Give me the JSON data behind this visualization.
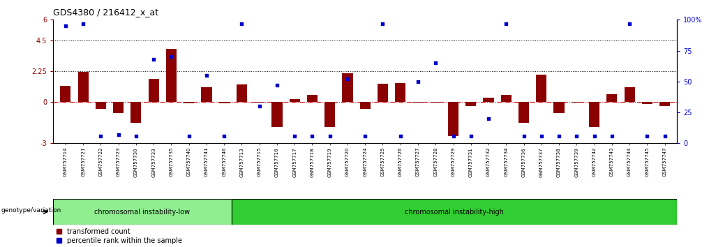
{
  "title": "GDS4380 / 216412_x_at",
  "samples": [
    "GSM757714",
    "GSM757721",
    "GSM757722",
    "GSM757723",
    "GSM757730",
    "GSM757733",
    "GSM757735",
    "GSM757740",
    "GSM757741",
    "GSM757746",
    "GSM757713",
    "GSM757715",
    "GSM757716",
    "GSM757717",
    "GSM757718",
    "GSM757719",
    "GSM757720",
    "GSM757724",
    "GSM757725",
    "GSM757726",
    "GSM757727",
    "GSM757728",
    "GSM757729",
    "GSM757731",
    "GSM757732",
    "GSM757734",
    "GSM757736",
    "GSM757737",
    "GSM757738",
    "GSM757739",
    "GSM757742",
    "GSM757743",
    "GSM757744",
    "GSM757745",
    "GSM757747"
  ],
  "transformed_count": [
    1.2,
    2.2,
    -0.5,
    -0.8,
    -1.5,
    1.7,
    3.9,
    -0.1,
    1.1,
    -0.1,
    1.3,
    -0.05,
    -1.8,
    0.2,
    0.55,
    -1.8,
    2.1,
    -0.5,
    1.35,
    1.4,
    -0.05,
    -0.05,
    -2.5,
    -0.3,
    0.3,
    0.5,
    -1.5,
    2.0,
    -0.8,
    -0.05,
    -1.8,
    0.6,
    1.1,
    -0.15,
    -0.3
  ],
  "percentile_rank": [
    95,
    97,
    6,
    7,
    6,
    68,
    70,
    6,
    55,
    6,
    97,
    30,
    47,
    6,
    6,
    6,
    52,
    6,
    97,
    6,
    50,
    65,
    6,
    6,
    20,
    97,
    6,
    6,
    6,
    6,
    6,
    6,
    97,
    6,
    6
  ],
  "group_labels": [
    "chromosomal instability-low",
    "chromosomal instability-high"
  ],
  "group_boundary": 10,
  "group_color_low": "#90EE90",
  "group_color_high": "#32CD32",
  "bar_color": "#8B0000",
  "dot_color": "#0000CD",
  "ylim_left": [
    -3,
    6
  ],
  "ylim_right": [
    0,
    100
  ],
  "yticks_left": [
    -3,
    0,
    2.25,
    4.5,
    6
  ],
  "yticks_left_labels": [
    "-3",
    "0",
    "2.25",
    "4.5",
    "6"
  ],
  "yticks_right": [
    0,
    25,
    50,
    75,
    100
  ],
  "yticks_right_labels": [
    "0",
    "25",
    "50",
    "75",
    "100%"
  ],
  "hlines": [
    2.25,
    4.5
  ],
  "zero_line_color": "#CC0000",
  "legend_red": "transformed count",
  "legend_blue": "percentile rank within the sample",
  "genotype_label": "genotype/variation"
}
